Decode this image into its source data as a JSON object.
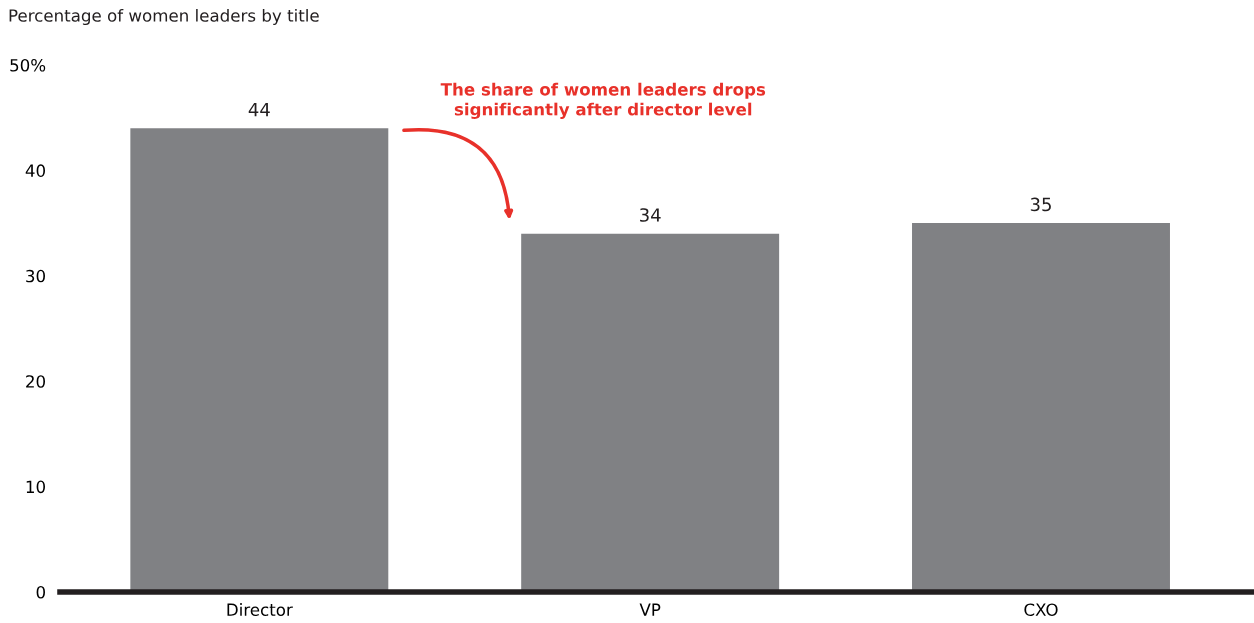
{
  "chart_data": {
    "type": "bar",
    "title": "Percentage of women leaders by title",
    "categories": [
      "Director",
      "VP",
      "CXO"
    ],
    "values": [
      44,
      34,
      35
    ],
    "color": "#808184",
    "ylim": [
      0,
      50
    ],
    "yticks": [
      0,
      10,
      20,
      30,
      40,
      {
        "value": 50,
        "label": "50%"
      }
    ],
    "grid": false,
    "legend": false,
    "data_labels": true,
    "annotations": [
      "The share of women leaders drops\nsignificantly after director level"
    ]
  }
}
